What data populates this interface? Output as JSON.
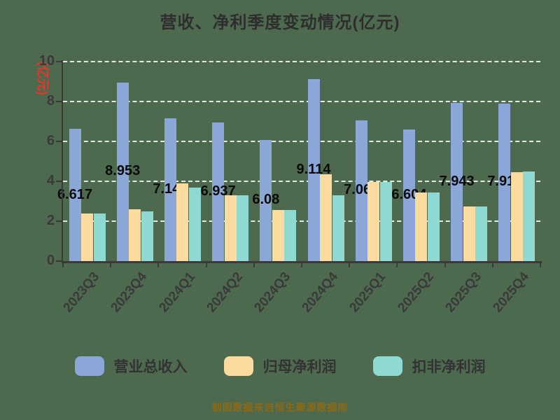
{
  "title": "营收、净利季度变动情况(亿元)",
  "y_axis_label": "(亿元)",
  "footer": "制图数据来自恒生聚源数据库",
  "colors": {
    "background": "#4D6A4F",
    "revenue_bar": "#8AA7D8",
    "net_profit_bar": "#FBDC9E",
    "non_gaap_bar": "#8EDAD3",
    "gridline": "#FFFFFF",
    "axis": "#3A3A3A",
    "unit_label": "#E8352B",
    "footer_text": "#8C6A15"
  },
  "legend": [
    {
      "label": "营业总收入",
      "color": "#8AA7D8"
    },
    {
      "label": "归母净利润",
      "color": "#FBDC9E"
    },
    {
      "label": "扣非净利润",
      "color": "#8EDAD3"
    }
  ],
  "chart_data": {
    "type": "bar",
    "title": "营收、净利季度变动情况(亿元)",
    "ylabel": "(亿元)",
    "xlabel": "",
    "ylim": [
      0,
      10
    ],
    "yticks": [
      0,
      2,
      4,
      6,
      8,
      10
    ],
    "grid": "horizontal-dashed-white",
    "legend_position": "bottom",
    "categories": [
      "2023Q3",
      "2023Q4",
      "2024Q1",
      "2024Q2",
      "2024Q3",
      "2024Q4",
      "2025Q1",
      "2025Q2",
      "2025Q3",
      "2025Q4"
    ],
    "series": [
      {
        "name": "营业总收入",
        "color": "#8AA7D8",
        "values": [
          6.617,
          8.953,
          7.145,
          6.937,
          6.08,
          9.114,
          7.061,
          6.604,
          7.943,
          7.911
        ],
        "labels": [
          "6.617",
          "8.953",
          "7.145",
          "6.937",
          "6.08",
          "9.114",
          "7.061",
          "6.604",
          "7.943",
          "7.911"
        ]
      },
      {
        "name": "归母净利润",
        "color": "#FBDC9E",
        "values": [
          2.4,
          2.6,
          3.9,
          3.3,
          2.55,
          4.35,
          3.95,
          3.45,
          2.75,
          4.45
        ]
      },
      {
        "name": "扣非净利润",
        "color": "#8EDAD3",
        "values": [
          2.4,
          2.5,
          3.7,
          3.3,
          2.55,
          3.3,
          3.95,
          3.45,
          2.75,
          4.5
        ]
      }
    ]
  }
}
